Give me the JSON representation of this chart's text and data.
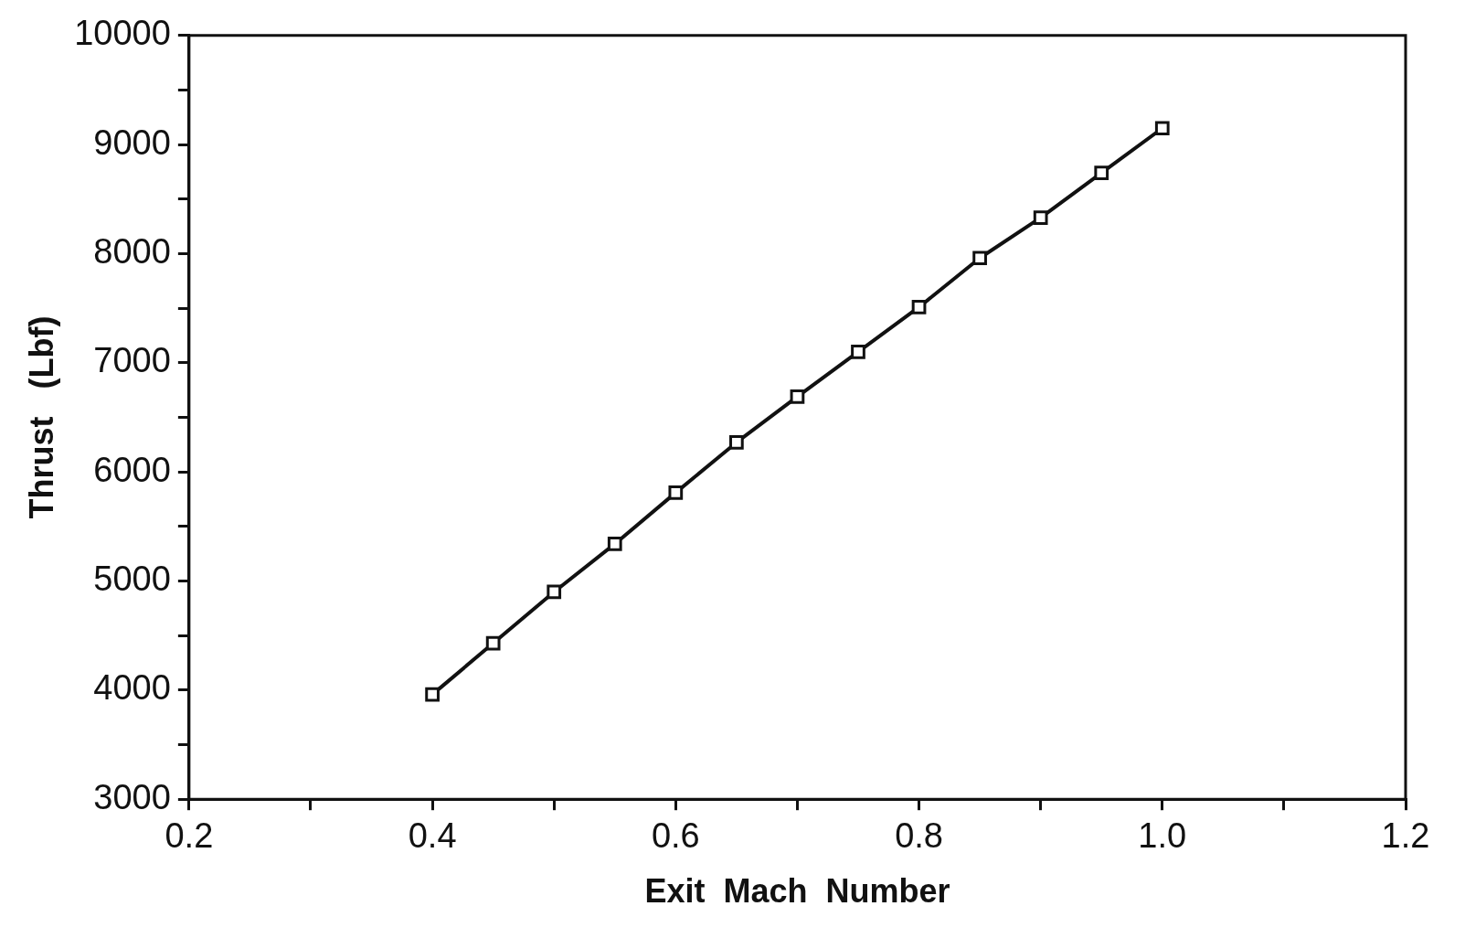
{
  "chart_data": {
    "type": "line",
    "xlabel": "Exit  Mach  Number",
    "ylabel": "Thrust   (Lbf)",
    "x": [
      0.4,
      0.45,
      0.5,
      0.55,
      0.6,
      0.65,
      0.7,
      0.75,
      0.8,
      0.85,
      0.9,
      0.95,
      1.0
    ],
    "series": [
      {
        "color": "#111111",
        "values": [
          3960,
          4430,
          4900,
          5340,
          5810,
          6270,
          6690,
          7100,
          7510,
          7960,
          8330,
          8740,
          9150
        ]
      }
    ],
    "xlim": [
      0.2,
      1.2
    ],
    "xticks": [
      0.2,
      {
        "value": 0.3,
        "label": null
      },
      0.4,
      {
        "value": 0.5,
        "label": null
      },
      0.6,
      {
        "value": 0.7,
        "label": null
      },
      0.8,
      {
        "value": 0.9,
        "label": null
      },
      {
        "value": 1,
        "label": "1.0"
      },
      {
        "value": 1.1,
        "label": null
      },
      1.2
    ],
    "ylim": [
      3000,
      10000
    ],
    "yticks": [
      3000,
      {
        "value": 3500,
        "label": null
      },
      4000,
      {
        "value": 4500,
        "label": null
      },
      5000,
      {
        "value": 5500,
        "label": null
      },
      6000,
      {
        "value": 6500,
        "label": null
      },
      7000,
      {
        "value": 7500,
        "label": null
      },
      8000,
      {
        "value": 8500,
        "label": null
      },
      9000,
      {
        "value": 9500,
        "label": null
      },
      10000
    ],
    "grid": false,
    "legend": false,
    "marker": "square",
    "line_style": "solid"
  }
}
